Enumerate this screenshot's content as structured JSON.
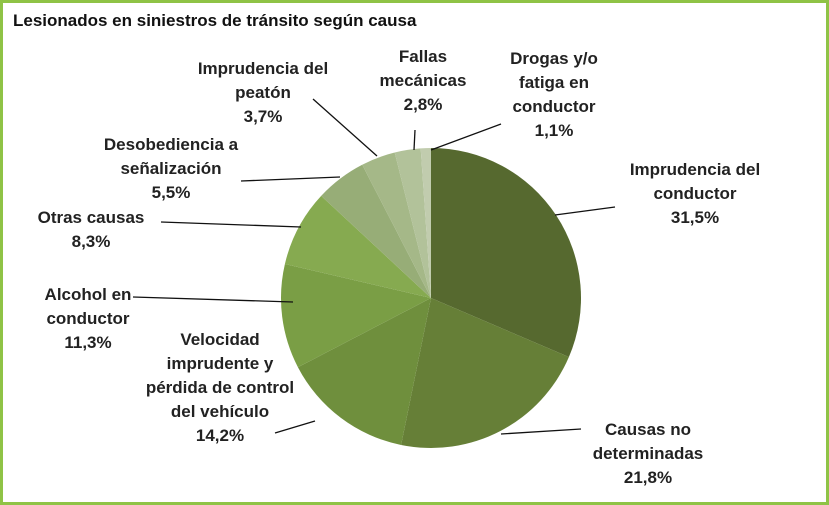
{
  "chart_data": {
    "type": "pie",
    "title": "Lesionados en siniestros de tránsito según causa",
    "categories": [
      "Imprudencia del conductor",
      "Causas no determinadas",
      "Velocidad imprudente y pérdida de control del vehículo",
      "Alcohol en conductor",
      "Otras causas",
      "Desobediencia a señalización",
      "Imprudencia del peatón",
      "Fallas mecánicas",
      "Drogas y/o fatiga en conductor"
    ],
    "values": [
      31.5,
      21.8,
      14.2,
      11.3,
      8.3,
      5.5,
      3.7,
      2.8,
      1.1
    ],
    "value_labels": [
      "31,5%",
      "21,8%",
      "14,2%",
      "11,3%",
      "8,3%",
      "5,5%",
      "3,7%",
      "2,8%",
      "1,1%"
    ],
    "colors": [
      "#56692f",
      "#667f37",
      "#6f8f3d",
      "#7a9e45",
      "#86aa50",
      "#97ad77",
      "#a5b888",
      "#b2c29a",
      "#c1ccae"
    ]
  }
}
